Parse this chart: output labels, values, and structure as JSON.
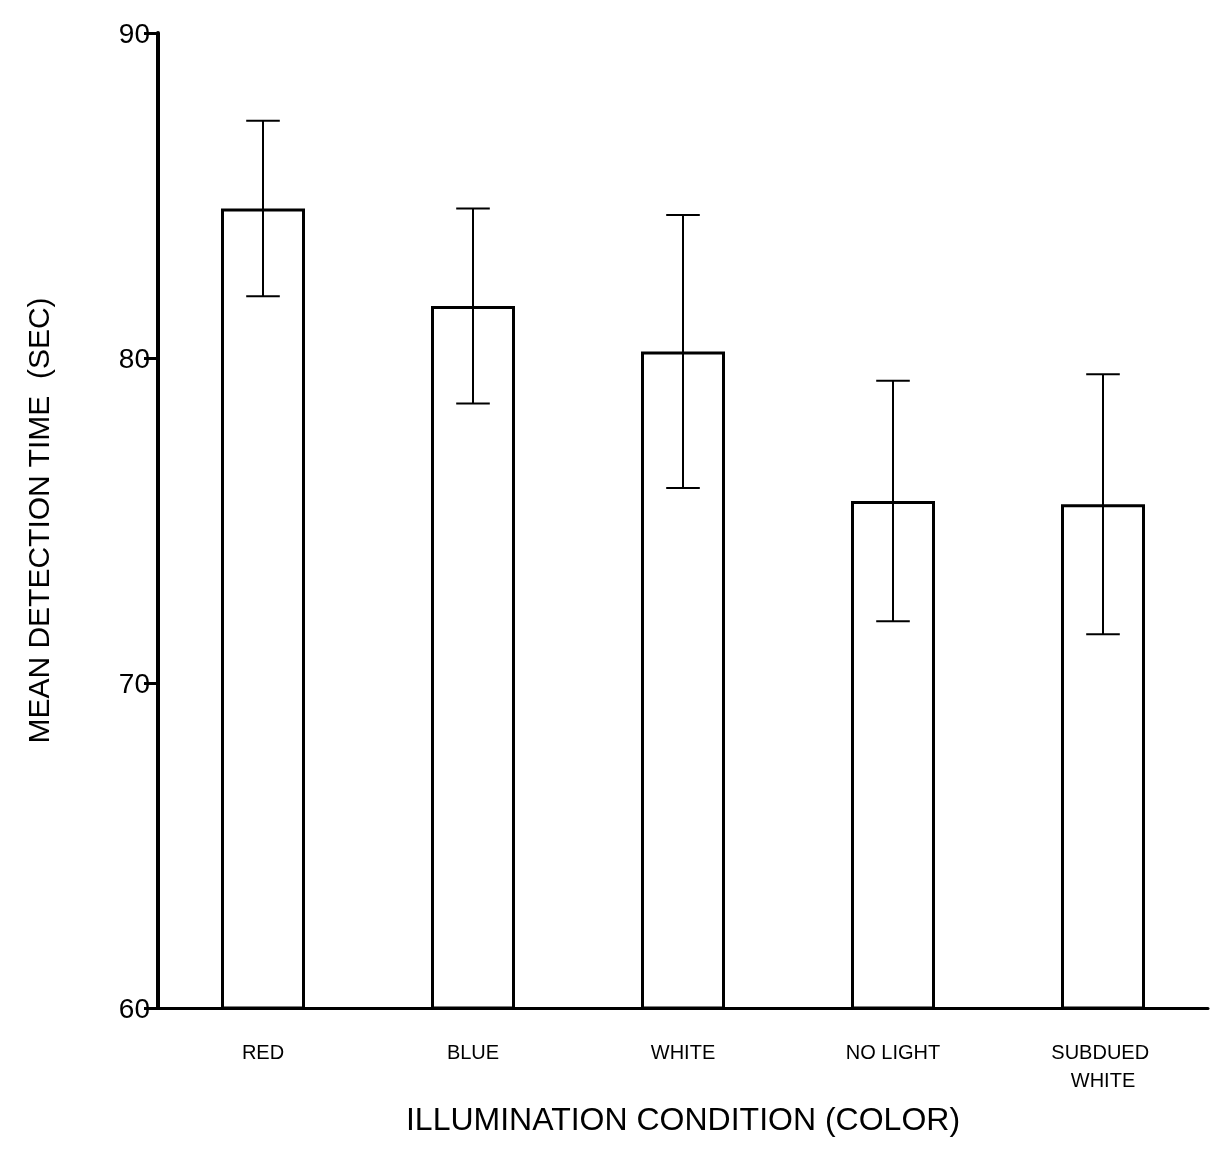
{
  "chart_data": {
    "type": "bar",
    "xlabel": "ILLUMINATION CONDITION (COLOR)",
    "ylabel": "MEAN DETECTION TIME  (SEC)",
    "categories": [
      "RED",
      "BLUE",
      "WHITE",
      "NO LIGHT",
      "SUBDUED WHITE"
    ],
    "values": [
      84.6,
      81.6,
      80.2,
      75.6,
      75.5
    ],
    "errors": [
      2.7,
      3.0,
      4.2,
      3.7,
      4.0
    ],
    "color": "#ffffff",
    "ylim": [
      60,
      90
    ],
    "yticks": [
      60,
      70,
      80,
      90
    ],
    "grid": false
  }
}
